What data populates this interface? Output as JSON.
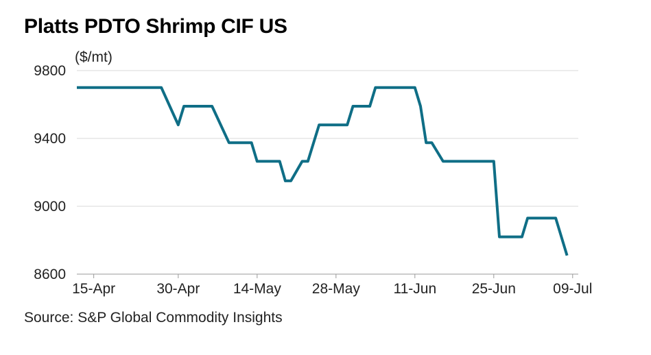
{
  "chart_data": {
    "type": "line",
    "title": "Platts PDTO Shrimp CIF US",
    "ylabel": "($/mt)",
    "source": "Source: S&P Global Commodity Insights",
    "ylim": [
      8600,
      9800
    ],
    "yticks": [
      "9800",
      "9400",
      "9000",
      "8600"
    ],
    "ytick_values": [
      9800,
      9400,
      9000,
      8600
    ],
    "xlim": [
      "2024-04-12",
      "2024-07-10"
    ],
    "xticks": [
      {
        "label": "15-Apr",
        "date": "2024-04-15"
      },
      {
        "label": "30-Apr",
        "date": "2024-04-30"
      },
      {
        "label": "14-May",
        "date": "2024-05-14"
      },
      {
        "label": "28-May",
        "date": "2024-05-28"
      },
      {
        "label": "11-Jun",
        "date": "2024-06-11"
      },
      {
        "label": "25-Jun",
        "date": "2024-06-25"
      },
      {
        "label": "09-Jul",
        "date": "2024-07-09"
      }
    ],
    "grid": true,
    "line_color": "#0f6e86",
    "series": [
      {
        "points": [
          {
            "x": "2024-04-12",
            "y": 9700
          },
          {
            "x": "2024-04-27",
            "y": 9700
          },
          {
            "x": "2024-04-30",
            "y": 9480
          },
          {
            "x": "2024-05-01",
            "y": 9590
          },
          {
            "x": "2024-05-06",
            "y": 9590
          },
          {
            "x": "2024-05-09",
            "y": 9375
          },
          {
            "x": "2024-05-13",
            "y": 9375
          },
          {
            "x": "2024-05-14",
            "y": 9265
          },
          {
            "x": "2024-05-18",
            "y": 9265
          },
          {
            "x": "2024-05-19",
            "y": 9150
          },
          {
            "x": "2024-05-20",
            "y": 9150
          },
          {
            "x": "2024-05-22",
            "y": 9265
          },
          {
            "x": "2024-05-23",
            "y": 9265
          },
          {
            "x": "2024-05-25",
            "y": 9480
          },
          {
            "x": "2024-05-30",
            "y": 9480
          },
          {
            "x": "2024-05-31",
            "y": 9590
          },
          {
            "x": "2024-06-03",
            "y": 9590
          },
          {
            "x": "2024-06-04",
            "y": 9700
          },
          {
            "x": "2024-06-11",
            "y": 9700
          },
          {
            "x": "2024-06-12",
            "y": 9590
          },
          {
            "x": "2024-06-13",
            "y": 9375
          },
          {
            "x": "2024-06-14",
            "y": 9375
          },
          {
            "x": "2024-06-16",
            "y": 9265
          },
          {
            "x": "2024-06-25",
            "y": 9265
          },
          {
            "x": "2024-06-26",
            "y": 8820
          },
          {
            "x": "2024-06-30",
            "y": 8820
          },
          {
            "x": "2024-07-01",
            "y": 8930
          },
          {
            "x": "2024-07-06",
            "y": 8930
          },
          {
            "x": "2024-07-08",
            "y": 8710
          }
        ]
      }
    ]
  }
}
